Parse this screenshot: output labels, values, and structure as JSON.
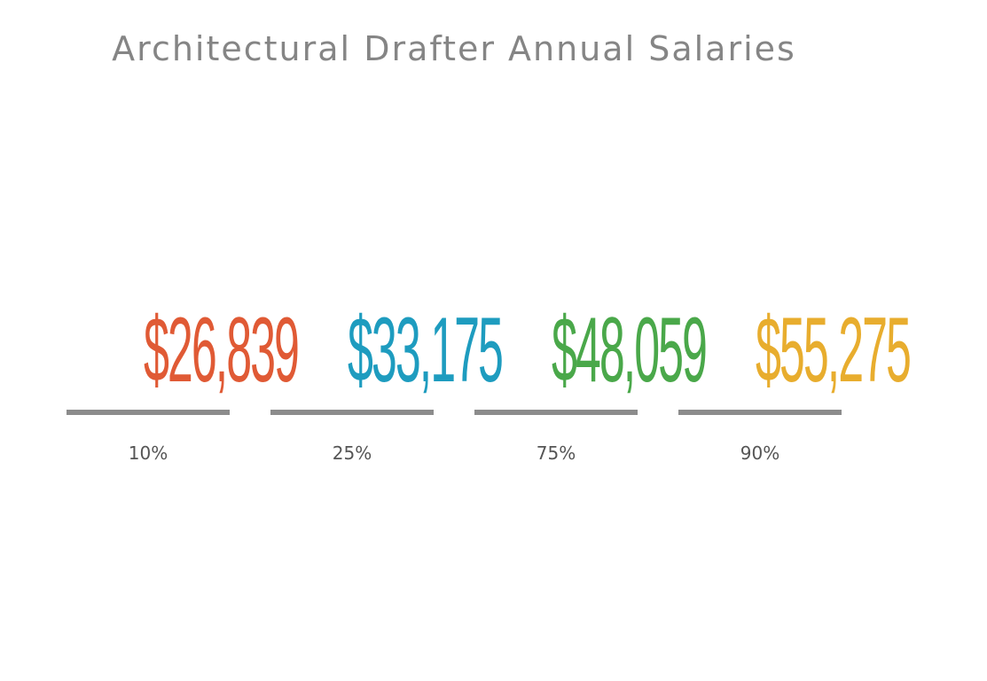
{
  "chart_data": {
    "type": "table",
    "title": "Architectural Drafter Annual Salaries",
    "items": [
      {
        "percentile": "10%",
        "value": "$26,839",
        "color": "#e05a35"
      },
      {
        "percentile": "25%",
        "value": "$33,175",
        "color": "#1e9cbf"
      },
      {
        "percentile": "75%",
        "value": "$48,059",
        "color": "#4aa84a"
      },
      {
        "percentile": "90%",
        "value": "$55,275",
        "color": "#e8ad2e"
      }
    ]
  }
}
